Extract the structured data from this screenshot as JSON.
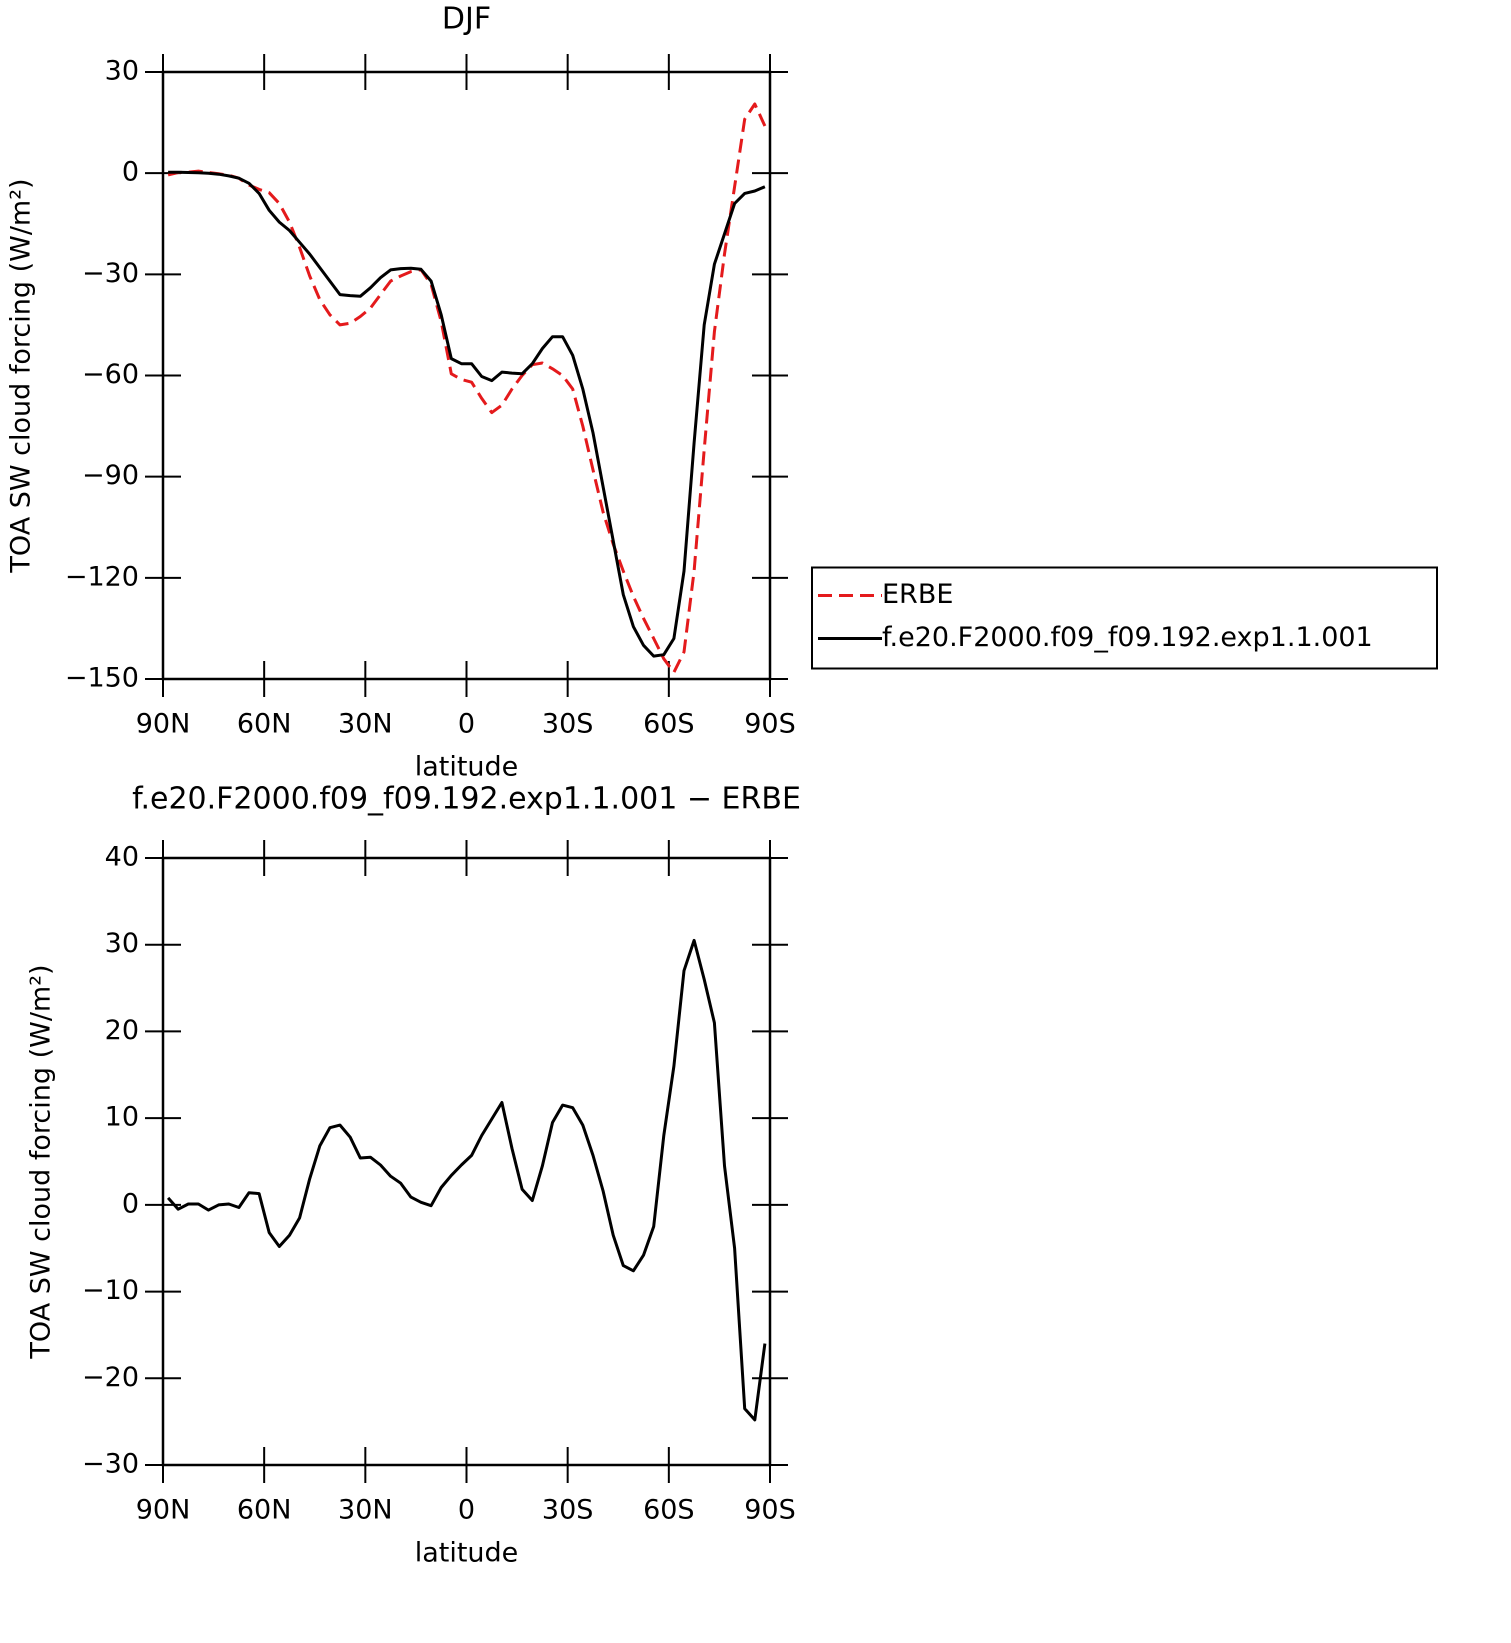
{
  "chart_data": [
    {
      "type": "line",
      "title": "DJF",
      "xlabel": "latitude",
      "ylabel": "TOA SW cloud forcing (W/m²)",
      "x": [
        88.5,
        85.5,
        82.5,
        79.5,
        76.5,
        73.5,
        70.5,
        67.5,
        64.5,
        61.5,
        58.5,
        55.5,
        52.5,
        49.5,
        46.5,
        43.5,
        40.5,
        37.5,
        34.5,
        31.5,
        28.5,
        25.5,
        22.5,
        19.5,
        16.5,
        13.5,
        10.5,
        7.5,
        4.5,
        1.5,
        -1.5,
        -4.5,
        -7.5,
        -10.5,
        -13.5,
        -16.5,
        -19.5,
        -22.5,
        -25.5,
        -28.5,
        -31.5,
        -34.5,
        -37.5,
        -40.5,
        -43.5,
        -46.5,
        -49.5,
        -52.5,
        -55.5,
        -58.5,
        -61.5,
        -64.5,
        -67.5,
        -70.5,
        -73.5,
        -76.5,
        -79.5,
        -82.5,
        -85.5,
        -88.5
      ],
      "xlim": [
        90,
        -90
      ],
      "xticks": [
        {
          "value": 90,
          "label": "90N"
        },
        {
          "value": 60,
          "label": "60N"
        },
        {
          "value": 30,
          "label": "30N"
        },
        0,
        {
          "value": -30,
          "label": "30S"
        },
        {
          "value": -60,
          "label": "60S"
        },
        {
          "value": -90,
          "label": "90S"
        }
      ],
      "ylim": [
        -150,
        30
      ],
      "yticks": [
        {
          "value": -150,
          "label": "−150"
        },
        {
          "value": -120,
          "label": "−120"
        },
        {
          "value": -90,
          "label": "−90"
        },
        {
          "value": -60,
          "label": "−60"
        },
        {
          "value": -30,
          "label": "−30"
        },
        0,
        30
      ],
      "legend": "right",
      "series": [
        {
          "name": "ERBE",
          "color": "#e41a1c",
          "style": "dashed",
          "values": [
            -0.5,
            0.2,
            0.3,
            0.6,
            0.2,
            -0.2,
            -0.6,
            -1.5,
            -3.5,
            -4.8,
            -5.8,
            -9,
            -14.5,
            -22,
            -30.5,
            -37.5,
            -42,
            -45,
            -44.5,
            -42.5,
            -40,
            -36,
            -32,
            -30.5,
            -29.2,
            -28.6,
            -33,
            -44,
            -59.5,
            -61.2,
            -62,
            -66.8,
            -71,
            -68.8,
            -64,
            -60,
            -56.8,
            -56.3,
            -58,
            -60,
            -64,
            -75,
            -88,
            -100.5,
            -110,
            -118,
            -125.5,
            -132,
            -138,
            -144,
            -148,
            -142,
            -118,
            -82,
            -47,
            -24,
            -4,
            16,
            20.5,
            14
          ]
        },
        {
          "name": "f.e20.F2000.f09_f09.192.exp1.1.001",
          "color": "#000000",
          "style": "solid",
          "values": [
            0.3,
            0.3,
            0.2,
            0.1,
            0,
            -0.3,
            -0.8,
            -1.5,
            -3,
            -6,
            -11,
            -14.5,
            -17,
            -20.5,
            -24,
            -28,
            -32,
            -36,
            -36.3,
            -36.5,
            -34,
            -31,
            -28.7,
            -28.3,
            -28.2,
            -28.5,
            -32,
            -42,
            -55,
            -56.5,
            -56.5,
            -60.3,
            -61.5,
            -59,
            -59.3,
            -59.5,
            -56.5,
            -52,
            -48.5,
            -48.5,
            -54,
            -64,
            -77,
            -93,
            -109,
            -125,
            -134.5,
            -140,
            -143.2,
            -142.8,
            -138,
            -118,
            -80,
            -45,
            -27,
            -18,
            -9,
            -6,
            -5.3,
            -4
          ]
        }
      ]
    },
    {
      "type": "line",
      "title": "f.e20.F2000.f09_f09.192.exp1.1.001 − ERBE",
      "xlabel": "latitude",
      "ylabel": "TOA SW cloud forcing (W/m²)",
      "x": [
        88.5,
        85.5,
        82.5,
        79.5,
        76.5,
        73.5,
        70.5,
        67.5,
        64.5,
        61.5,
        58.5,
        55.5,
        52.5,
        49.5,
        46.5,
        43.5,
        40.5,
        37.5,
        34.5,
        31.5,
        28.5,
        25.5,
        22.5,
        19.5,
        16.5,
        13.5,
        10.5,
        7.5,
        4.5,
        1.5,
        -1.5,
        -4.5,
        -7.5,
        -10.5,
        -13.5,
        -16.5,
        -19.5,
        -22.5,
        -25.5,
        -28.5,
        -31.5,
        -34.5,
        -37.5,
        -40.5,
        -43.5,
        -46.5,
        -49.5,
        -52.5,
        -55.5,
        -58.5,
        -61.5,
        -64.5,
        -67.5,
        -70.5,
        -73.5,
        -76.5,
        -79.5,
        -82.5,
        -85.5,
        -88.5
      ],
      "xlim": [
        90,
        -90
      ],
      "xticks": [
        {
          "value": 90,
          "label": "90N"
        },
        {
          "value": 60,
          "label": "60N"
        },
        {
          "value": 30,
          "label": "30N"
        },
        0,
        {
          "value": -30,
          "label": "30S"
        },
        {
          "value": -60,
          "label": "60S"
        },
        {
          "value": -90,
          "label": "90S"
        }
      ],
      "ylim": [
        -30,
        40
      ],
      "yticks": [
        {
          "value": -30,
          "label": "−30"
        },
        {
          "value": -20,
          "label": "−20"
        },
        {
          "value": -10,
          "label": "−10"
        },
        0,
        10,
        20,
        30,
        40
      ],
      "series": [
        {
          "color": "#000000",
          "style": "solid",
          "values": [
            0.8,
            -0.5,
            0.1,
            0.1,
            -0.6,
            0,
            0.1,
            -0.3,
            1.4,
            1.3,
            -3.2,
            -4.8,
            -3.5,
            -1.5,
            3,
            6.8,
            8.9,
            9.2,
            7.8,
            5.4,
            5.5,
            4.6,
            3.3,
            2.5,
            0.9,
            0.3,
            -0.1,
            2,
            3.4,
            4.6,
            5.7,
            8,
            9.9,
            11.8,
            6.5,
            1.8,
            0.5,
            4.5,
            9.5,
            11.5,
            11.2,
            9.2,
            5.7,
            1.6,
            -3.5,
            -7,
            -7.6,
            -5.8,
            -2.5,
            8,
            16,
            27,
            30.5,
            26,
            21,
            4.5,
            -5,
            -23.5,
            -24.8,
            -16
          ]
        }
      ]
    }
  ]
}
